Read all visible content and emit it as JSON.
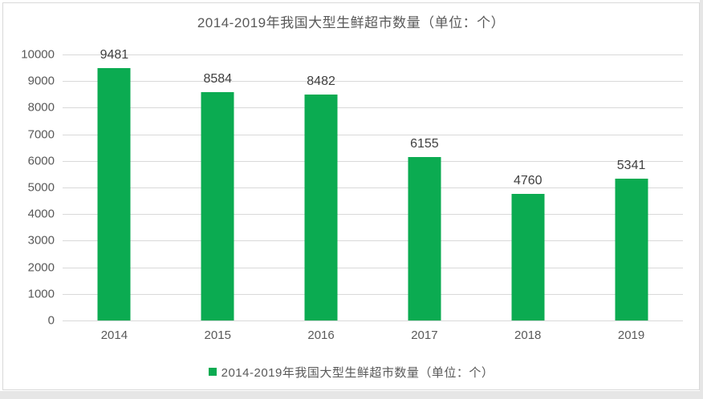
{
  "chart_data": {
    "type": "bar",
    "title": "2014-2019年我国大型生鲜超市数量（单位：个）",
    "categories": [
      "2014",
      "2015",
      "2016",
      "2017",
      "2018",
      "2019"
    ],
    "values": [
      9481,
      8584,
      8482,
      6155,
      4760,
      5341
    ],
    "xlabel": "",
    "ylabel": "",
    "ylim": [
      0,
      10000
    ],
    "ytick_step": 1000,
    "grid": true,
    "value_labels_shown": true,
    "legend": {
      "position": "bottom",
      "label": "2014-2019年我国大型生鲜超市数量（单位：个）"
    },
    "colors": {
      "bar": "#0BAB51",
      "title_text": "#595959",
      "axis_text": "#595959",
      "value_label_text": "#404040",
      "gridline": "#D9D9D9",
      "frame_border": "#D9D9D9",
      "page_strip": "#E6E6E6"
    }
  }
}
